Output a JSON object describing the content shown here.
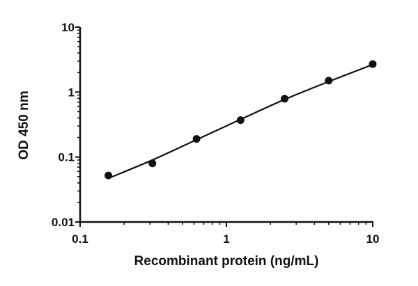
{
  "chart_data": {
    "type": "scatter",
    "xlabel": "Recombinant protein (ng/mL)",
    "ylabel": "OD 450 nm",
    "xscale": "log",
    "yscale": "log",
    "xlim": [
      0.1,
      10
    ],
    "ylim": [
      0.01,
      10
    ],
    "xticks": [
      {
        "value": 0.1,
        "label": "0.1"
      },
      {
        "value": 1,
        "label": "1"
      },
      {
        "value": 10,
        "label": "10"
      }
    ],
    "yticks": [
      {
        "value": 0.01,
        "label": "0.01"
      },
      {
        "value": 0.1,
        "label": "0.1"
      },
      {
        "value": 1,
        "label": "1"
      },
      {
        "value": 10,
        "label": "10"
      }
    ],
    "grid": false,
    "points": [
      {
        "x": 0.156,
        "y": 0.052
      },
      {
        "x": 0.312,
        "y": 0.08
      },
      {
        "x": 0.625,
        "y": 0.19
      },
      {
        "x": 1.25,
        "y": 0.37
      },
      {
        "x": 2.5,
        "y": 0.79
      },
      {
        "x": 5,
        "y": 1.5
      },
      {
        "x": 10,
        "y": 2.7
      }
    ],
    "fit_curve": [
      [
        0.156,
        0.047
      ],
      [
        0.312,
        0.09
      ],
      [
        0.625,
        0.185
      ],
      [
        1.25,
        0.38
      ],
      [
        2.5,
        0.77
      ],
      [
        5,
        1.45
      ],
      [
        10,
        2.65
      ]
    ],
    "colors": {
      "marks": "#111111",
      "axes": "#111111"
    }
  }
}
